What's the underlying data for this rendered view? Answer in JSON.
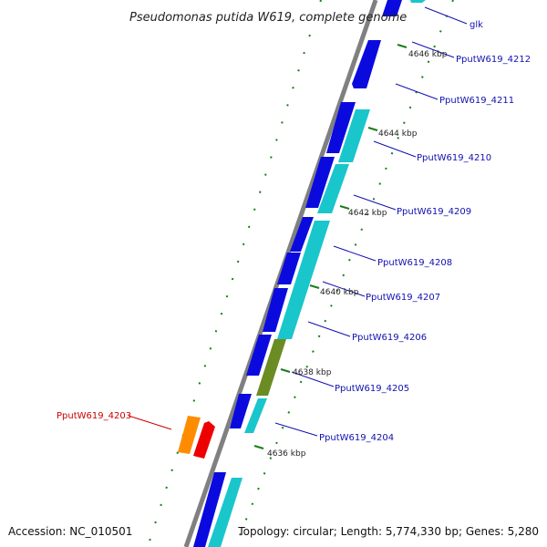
{
  "title": "Pseudomonas putida W619, complete genome",
  "footer": {
    "accession": "Accession: NC_010501",
    "topology": "Topology: circular; Length: 5,774,330 bp; Genes: 5,280"
  },
  "colors": {
    "forward_gene": "#0a0adf",
    "reverse_gene": "#19c6cc",
    "pseudo_gene": "#6b8b23",
    "selected_gene_a": "#ff8c00",
    "selected_gene_b": "#ee0000",
    "backbone": "#808080",
    "tick": "#1a7d1a",
    "label_blue": "#1010b0",
    "label_red": "#cc0000"
  },
  "ticks": [
    {
      "label": "4646 kbp"
    },
    {
      "label": "4644 kbp"
    },
    {
      "label": "4642 kbp"
    },
    {
      "label": "4640 kbp"
    },
    {
      "label": "4638 kbp"
    },
    {
      "label": "4636 kbp"
    }
  ],
  "gene_labels": [
    {
      "name": "glk"
    },
    {
      "name": "PputW619_4212"
    },
    {
      "name": "PputW619_4211"
    },
    {
      "name": "PputW619_4210"
    },
    {
      "name": "PputW619_4209"
    },
    {
      "name": "PputW619_4208"
    },
    {
      "name": "PputW619_4207"
    },
    {
      "name": "PputW619_4206"
    },
    {
      "name": "PputW619_4205"
    },
    {
      "name": "PputW619_4204"
    },
    {
      "name": "PputW619_4203"
    }
  ]
}
